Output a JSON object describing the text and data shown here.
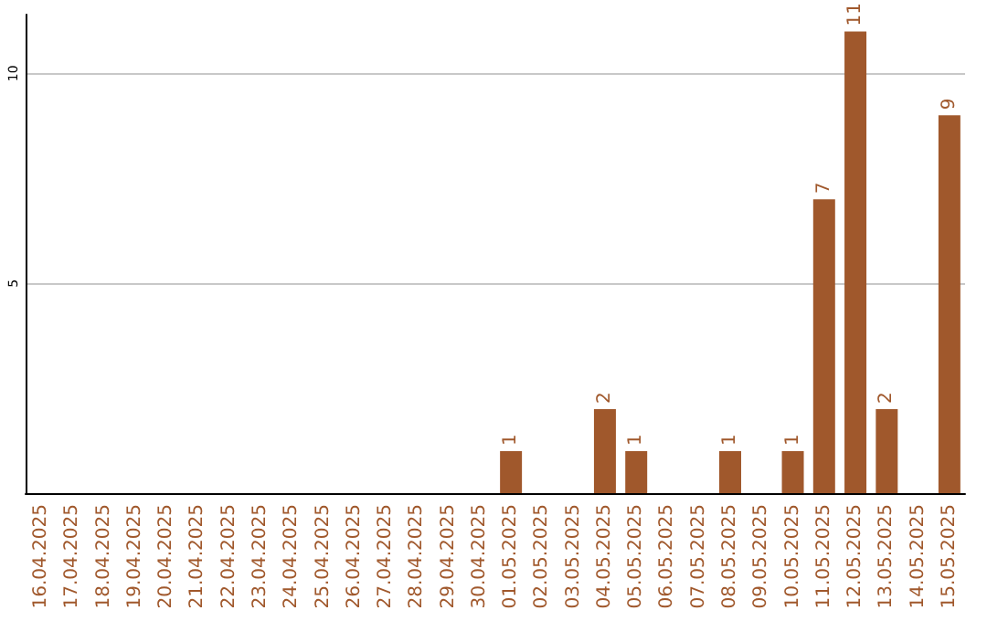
{
  "chart_data": {
    "type": "bar",
    "categories": [
      "16.04.2025",
      "17.04.2025",
      "18.04.2025",
      "19.04.2025",
      "20.04.2025",
      "21.04.2025",
      "22.04.2025",
      "23.04.2025",
      "24.04.2025",
      "25.04.2025",
      "26.04.2025",
      "27.04.2025",
      "28.04.2025",
      "29.04.2025",
      "30.04.2025",
      "01.05.2025",
      "02.05.2025",
      "03.05.2025",
      "04.05.2025",
      "05.05.2025",
      "06.05.2025",
      "07.05.2025",
      "08.05.2025",
      "09.05.2025",
      "10.05.2025",
      "11.05.2025",
      "12.05.2025",
      "13.05.2025",
      "14.05.2025",
      "15.05.2025"
    ],
    "values": [
      null,
      null,
      null,
      null,
      null,
      null,
      null,
      null,
      null,
      null,
      null,
      null,
      null,
      null,
      null,
      1,
      null,
      null,
      2,
      1,
      null,
      null,
      1,
      null,
      1,
      7,
      11,
      2,
      null,
      9
    ],
    "color": "#a0582c",
    "ylim": [
      0,
      11.4
    ],
    "yticks": [
      5,
      10
    ],
    "grid": "y",
    "data_labels": true
  }
}
